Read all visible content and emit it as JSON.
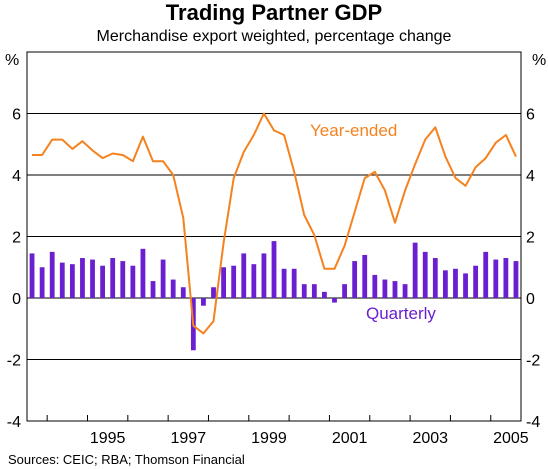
{
  "title": "Trading Partner GDP",
  "subtitle": "Merchandise export weighted, percentage change",
  "unit_left": "%",
  "unit_right": "%",
  "source": "Sources: CEIC; RBA; Thomson Financial",
  "colors": {
    "line": "#f5821f",
    "bars": "#6a1fd0",
    "grid": "#000000"
  },
  "chart_data": {
    "type": "bar+line",
    "title": "Trading Partner GDP",
    "subtitle": "Merchandise export weighted, percentage change",
    "ylabel": "%",
    "ylim": [
      -4,
      8
    ],
    "yticks": [
      -4,
      -2,
      0,
      2,
      4,
      6
    ],
    "xlim": [
      1993.5,
      2005.75
    ],
    "xticks": [
      "1995",
      "1997",
      "1999",
      "2001",
      "2003",
      "2005"
    ],
    "xtick_positions": [
      1995,
      1997,
      1999,
      2001,
      2003,
      2005
    ],
    "grid": true,
    "series": [
      {
        "name": "Quarterly",
        "type": "bar",
        "x": [
          1993.625,
          1993.875,
          1994.125,
          1994.375,
          1994.625,
          1994.875,
          1995.125,
          1995.375,
          1995.625,
          1995.875,
          1996.125,
          1996.375,
          1996.625,
          1996.875,
          1997.125,
          1997.375,
          1997.625,
          1997.875,
          1998.125,
          1998.375,
          1998.625,
          1998.875,
          1999.125,
          1999.375,
          1999.625,
          1999.875,
          2000.125,
          2000.375,
          2000.625,
          2000.875,
          2001.125,
          2001.375,
          2001.625,
          2001.875,
          2002.125,
          2002.375,
          2002.625,
          2002.875,
          2003.125,
          2003.375,
          2003.625,
          2003.875,
          2004.125,
          2004.375,
          2004.625,
          2004.875,
          2005.125,
          2005.375,
          2005.625
        ],
        "values": [
          1.45,
          1.0,
          1.5,
          1.15,
          1.1,
          1.3,
          1.25,
          1.05,
          1.3,
          1.2,
          1.05,
          1.6,
          0.55,
          1.25,
          0.6,
          0.35,
          -1.7,
          -0.25,
          0.35,
          1.0,
          1.05,
          1.45,
          1.1,
          1.45,
          1.85,
          0.95,
          0.95,
          0.45,
          0.45,
          0.2,
          -0.15,
          0.45,
          1.2,
          1.4,
          0.75,
          0.6,
          0.55,
          0.45,
          1.8,
          1.5,
          1.3,
          0.9,
          0.95,
          0.8,
          1.05,
          1.5,
          1.25,
          1.3,
          1.2
        ]
      },
      {
        "name": "Year-ended",
        "type": "line",
        "x": [
          1993.625,
          1993.875,
          1994.125,
          1994.375,
          1994.625,
          1994.875,
          1995.125,
          1995.375,
          1995.625,
          1995.875,
          1996.125,
          1996.375,
          1996.625,
          1996.875,
          1997.125,
          1997.375,
          1997.625,
          1997.875,
          1998.125,
          1998.375,
          1998.625,
          1998.875,
          1999.125,
          1999.375,
          1999.625,
          1999.875,
          2000.125,
          2000.375,
          2000.625,
          2000.875,
          2001.125,
          2001.375,
          2001.625,
          2001.875,
          2002.125,
          2002.375,
          2002.625,
          2002.875,
          2003.125,
          2003.375,
          2003.625,
          2003.875,
          2004.125,
          2004.375,
          2004.625,
          2004.875,
          2005.125,
          2005.375,
          2005.625
        ],
        "values": [
          4.65,
          4.65,
          5.15,
          5.15,
          4.85,
          5.1,
          4.8,
          4.55,
          4.7,
          4.65,
          4.45,
          5.25,
          4.45,
          4.45,
          4.0,
          2.6,
          -0.9,
          -1.15,
          -0.75,
          1.8,
          3.9,
          4.75,
          5.3,
          6.0,
          5.45,
          5.3,
          4.1,
          2.7,
          2.05,
          0.95,
          0.95,
          1.7,
          2.8,
          3.9,
          4.1,
          3.5,
          2.45,
          3.5,
          4.35,
          5.15,
          5.55,
          4.6,
          3.9,
          3.65,
          4.25,
          4.55,
          5.05,
          5.3,
          4.6
        ]
      }
    ],
    "annotations": [
      {
        "text": "Year-ended",
        "series": "Year-ended"
      },
      {
        "text": "Quarterly",
        "series": "Quarterly"
      }
    ]
  }
}
